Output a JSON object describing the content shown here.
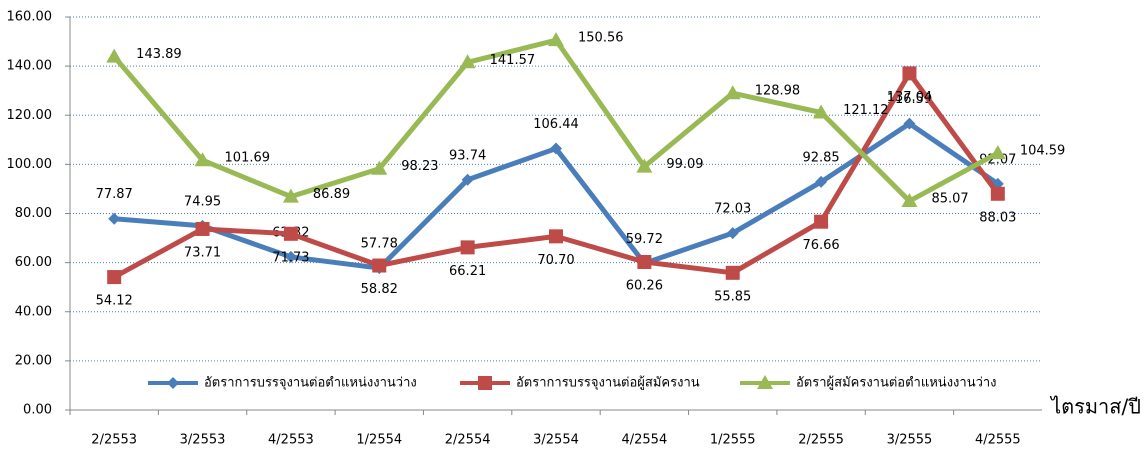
{
  "chart_data": {
    "type": "line",
    "x_label": "ไตรมาส/ปี",
    "categories": [
      "2/2553",
      "3/2553",
      "4/2553",
      "1/2554",
      "2/2554",
      "3/2554",
      "4/2554",
      "1/2555",
      "2/2555",
      "3/2555",
      "4/2555"
    ],
    "ylim": [
      0,
      160
    ],
    "yticks": [
      {
        "value": 0,
        "label": "0.00"
      },
      {
        "value": 20,
        "label": "20.00"
      },
      {
        "value": 40,
        "label": "40.00"
      },
      {
        "value": 60,
        "label": "60.00"
      },
      {
        "value": 80,
        "label": "80.00"
      },
      {
        "value": 100,
        "label": "100.00"
      },
      {
        "value": 120,
        "label": "120.00"
      },
      {
        "value": 140,
        "label": "140.00"
      },
      {
        "value": 160,
        "label": "160.00"
      }
    ],
    "grid": true,
    "legend": "bottom",
    "series": [
      {
        "name": "อัตราการบรรจุงานต่อตำแหน่งงานว่าง",
        "color": "#4a7ebb",
        "marker": "diamond",
        "label_color": "#4f6b8f",
        "values": [
          77.87,
          74.95,
          62.32,
          57.78,
          93.74,
          106.44,
          59.72,
          72.03,
          92.85,
          116.59,
          92.07
        ],
        "value_labels": [
          "77.87",
          "74.95",
          "62.32",
          "57.78",
          "93.74",
          "106.44",
          "59.72",
          "72.03",
          "92.85",
          "116.59",
          "92.07"
        ]
      },
      {
        "name": "อัตราการบรรจุงานต่อผู้สมัครงาน",
        "color": "#be4b48",
        "marker": "square",
        "label_color": "#8b3a3a",
        "values": [
          54.12,
          73.71,
          71.73,
          58.82,
          66.21,
          70.7,
          60.26,
          55.85,
          76.66,
          137.04,
          88.03
        ],
        "value_labels": [
          "54.12",
          "73.71",
          "71.73",
          "58.82",
          "66.21",
          "70.70",
          "60.26",
          "55.85",
          "76.66",
          "137.04",
          "88.03"
        ]
      },
      {
        "name": "อัตราผู้สมัครงานต่อตำแหน่งงานว่าง",
        "color": "#98b954",
        "marker": "triangle",
        "label_color": "#76923c",
        "values": [
          143.89,
          101.69,
          86.89,
          98.23,
          141.57,
          150.56,
          99.09,
          128.98,
          121.12,
          85.07,
          104.59
        ],
        "value_labels": [
          "143.89",
          "101.69",
          "86.89",
          "98.23",
          "141.57",
          "150.56",
          "99.09",
          "128.98",
          "121.12",
          "85.07",
          "104.59"
        ]
      }
    ]
  }
}
